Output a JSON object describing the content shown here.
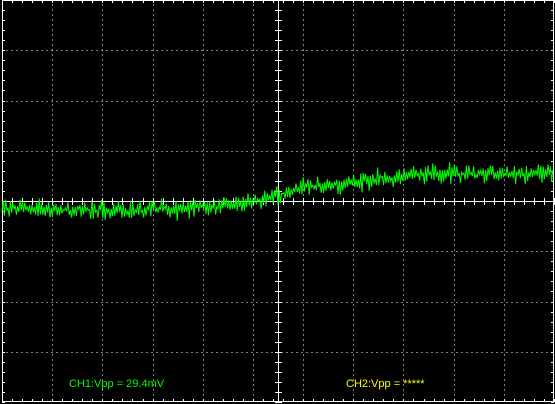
{
  "scope": {
    "background_color": "#000000",
    "grid_color": "#ffffff",
    "divisions": {
      "horizontal": 11,
      "vertical": 8
    },
    "minor_ticks_per_division": 5
  },
  "channel1": {
    "trace_color": "#00ff00",
    "readout_color": "#00ff00",
    "readout": "CH1:Vpp = 29.4mV"
  },
  "channel2": {
    "readout_color": "#ffff00",
    "readout": "CH2:Vpp = *****"
  }
}
